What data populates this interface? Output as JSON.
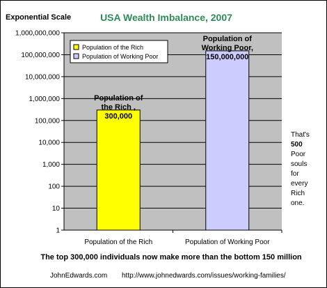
{
  "chart_data": {
    "type": "bar",
    "title": "USA Wealth Imbalance, 2007",
    "scale_label": "Exponential Scale",
    "log_scale": true,
    "ylim": [
      1,
      1000000000
    ],
    "y_ticks": [
      1,
      10,
      100,
      1000,
      10000,
      100000,
      1000000,
      10000000,
      100000000,
      1000000000
    ],
    "y_tick_labels": [
      "1",
      "10",
      "100",
      "1,000",
      "10,000",
      "100,000",
      "1,000,000",
      "10,000,000",
      "100,000,000",
      "1,000,000,000"
    ],
    "categories": [
      "Population of the Rich",
      "Population of Working Poor"
    ],
    "values": [
      300000,
      150000000
    ],
    "bar_colors": [
      "#ffff00",
      "#ccccff"
    ],
    "data_labels": [
      [
        "Population of",
        "the Rich ,",
        "300,000"
      ],
      [
        "Population of",
        "Working Poor,",
        "150,000,000"
      ]
    ],
    "legend": {
      "position": "top-left",
      "entries": [
        "Population of the Rich",
        "Population of Working Poor"
      ]
    },
    "grid": true,
    "side_note": [
      "That's",
      "500",
      "Poor",
      "souls",
      "for",
      "every",
      "Rich",
      "one."
    ],
    "caption": "The top 300,000 individuals now make more than the bottom 150 million",
    "footer_left": "JohnEdwards.com",
    "footer_right": "http://www.johnedwards.com/issues/working-families/",
    "colors": {
      "title": "#2e8b57",
      "plot_background": "#c0c0c0",
      "gridline": "#000000"
    }
  }
}
